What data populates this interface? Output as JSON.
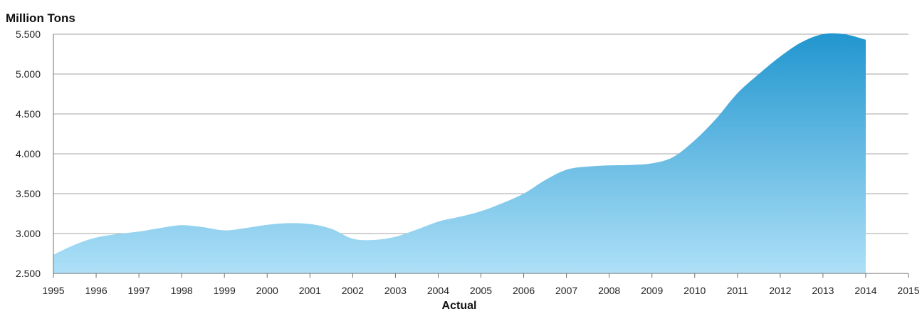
{
  "chart_data": {
    "type": "area",
    "ylabel": "Million Tons",
    "xlabel": "Actual",
    "xlim": [
      1995,
      2015
    ],
    "ylim": [
      2500,
      5500
    ],
    "x_ticks": [
      "1995",
      "1996",
      "1997",
      "1998",
      "1999",
      "2000",
      "2001",
      "2002",
      "2003",
      "2004",
      "2005",
      "2006",
      "2007",
      "2008",
      "2009",
      "2010",
      "2011",
      "2012",
      "2013",
      "2014",
      "2015"
    ],
    "y_ticks": [
      "2.500",
      "3.000",
      "3.500",
      "4.000",
      "4.500",
      "5.000",
      "5.500"
    ],
    "y_tick_values": [
      2500,
      3000,
      3500,
      4000,
      4500,
      5000,
      5500
    ],
    "grid": true,
    "legend": "none",
    "colors": {
      "top": "#2196cf",
      "bottom": "#aee0f7",
      "grid": "#a6a6a6",
      "axis": "#6f6f6f"
    },
    "series": [
      {
        "x": [
          1995.0,
          1995.5,
          1996.0,
          1996.5,
          1997.0,
          1997.5,
          1998.0,
          1998.5,
          1999.0,
          1999.5,
          2000.0,
          2000.5,
          2001.0,
          2001.5,
          2002.0,
          2002.5,
          2003.0,
          2003.5,
          2004.0,
          2004.5,
          2005.0,
          2005.5,
          2006.0,
          2006.5,
          2007.0,
          2007.5,
          2008.0,
          2008.5,
          2009.0,
          2009.5,
          2010.0,
          2010.5,
          2011.0,
          2011.5,
          2012.0,
          2012.5,
          2013.0,
          2013.5,
          2014.0
        ],
        "values": [
          2735,
          2860,
          2950,
          2995,
          3025,
          3070,
          3105,
          3080,
          3040,
          3070,
          3110,
          3130,
          3120,
          3060,
          2935,
          2920,
          2960,
          3050,
          3150,
          3210,
          3280,
          3380,
          3500,
          3670,
          3800,
          3840,
          3855,
          3860,
          3880,
          3960,
          4170,
          4440,
          4760,
          5000,
          5220,
          5400,
          5500,
          5500,
          5430
        ]
      }
    ]
  }
}
